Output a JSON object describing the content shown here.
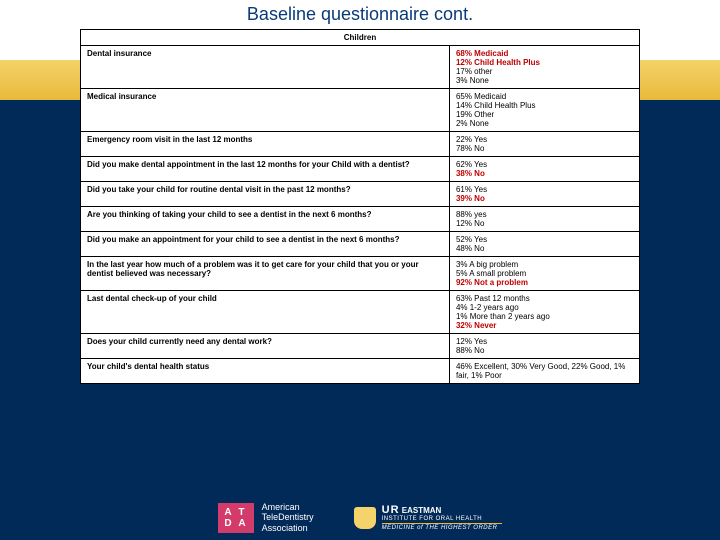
{
  "title": "Baseline questionnaire cont.",
  "table": {
    "header": "Children",
    "rows": [
      {
        "q": "Dental insurance",
        "a": [
          {
            "t": "68% Medicaid",
            "red": true
          },
          {
            "t": "12% Child Health Plus",
            "red": true
          },
          {
            "t": "17% other",
            "red": false
          },
          {
            "t": "3% None",
            "red": false
          }
        ]
      },
      {
        "q": "Medical insurance",
        "a": [
          {
            "t": "65% Medicaid",
            "red": false
          },
          {
            "t": "14% Child Health Plus",
            "red": false
          },
          {
            "t": "19% Other",
            "red": false
          },
          {
            "t": "2% None",
            "red": false
          }
        ]
      },
      {
        "q": "Emergency room visit in the last 12 months",
        "a": [
          {
            "t": "22% Yes",
            "red": false
          },
          {
            "t": "78% No",
            "red": false
          }
        ]
      },
      {
        "q": "Did you make dental appointment in the last 12 months for your Child with a dentist?",
        "a": [
          {
            "t": "62% Yes",
            "red": false
          },
          {
            "t": "38% No",
            "red": true
          }
        ]
      },
      {
        "q": "Did you take your child for routine dental visit in the past 12 months?",
        "a": [
          {
            "t": "61% Yes",
            "red": false
          },
          {
            "t": "39% No",
            "red": true
          }
        ]
      },
      {
        "q": "Are you thinking of taking your child to see a dentist in the next 6 months?",
        "a": [
          {
            "t": "88% yes",
            "red": false
          },
          {
            "t": "12% No",
            "red": false
          }
        ]
      },
      {
        "q": "Did you make an appointment for your child to see a dentist in the next 6 months?",
        "a": [
          {
            "t": "52% Yes",
            "red": false
          },
          {
            "t": "48% No",
            "red": false
          }
        ]
      },
      {
        "q": "In the last year how much of a problem was it to get care for your child that you or your dentist believed was necessary?",
        "a": [
          {
            "t": "3% A big problem",
            "red": false
          },
          {
            "t": "5% A small problem",
            "red": false
          },
          {
            "t": "92% Not a problem",
            "red": true
          }
        ]
      },
      {
        "q": "Last dental check-up of your child",
        "a": [
          {
            "t": "63% Past 12 months",
            "red": false
          },
          {
            "t": "4%  1-2 years ago",
            "red": false
          },
          {
            "t": "1%  More than 2 years ago",
            "red": false
          },
          {
            "t": "32% Never",
            "red": true
          }
        ]
      },
      {
        "q": "Does your child  currently need any dental work?",
        "a": [
          {
            "t": "12% Yes",
            "red": false
          },
          {
            "t": "88% No",
            "red": false
          }
        ]
      },
      {
        "q": "Your child's dental health status",
        "a": [
          {
            "t": "46% Excellent, 30% Very Good, 22% Good, 1% fair, 1% Poor",
            "red": false
          }
        ]
      }
    ]
  },
  "footer": {
    "atda_logo": "A T\nD A",
    "atda_label": "American\nTeleDentistry\nAssociation",
    "ur": "UR",
    "eastman": "EASTMAN",
    "institute": "INSTITUTE FOR ORAL HEALTH",
    "motto": "MEDICINE of THE HIGHEST ORDER"
  },
  "colors": {
    "slide_bg": "#022a58",
    "title_color": "#0a3a7a",
    "band_top": "#f4d36a",
    "band_bot": "#e8b93a",
    "red": "#c00000",
    "atda_bg": "#d33b6b"
  }
}
